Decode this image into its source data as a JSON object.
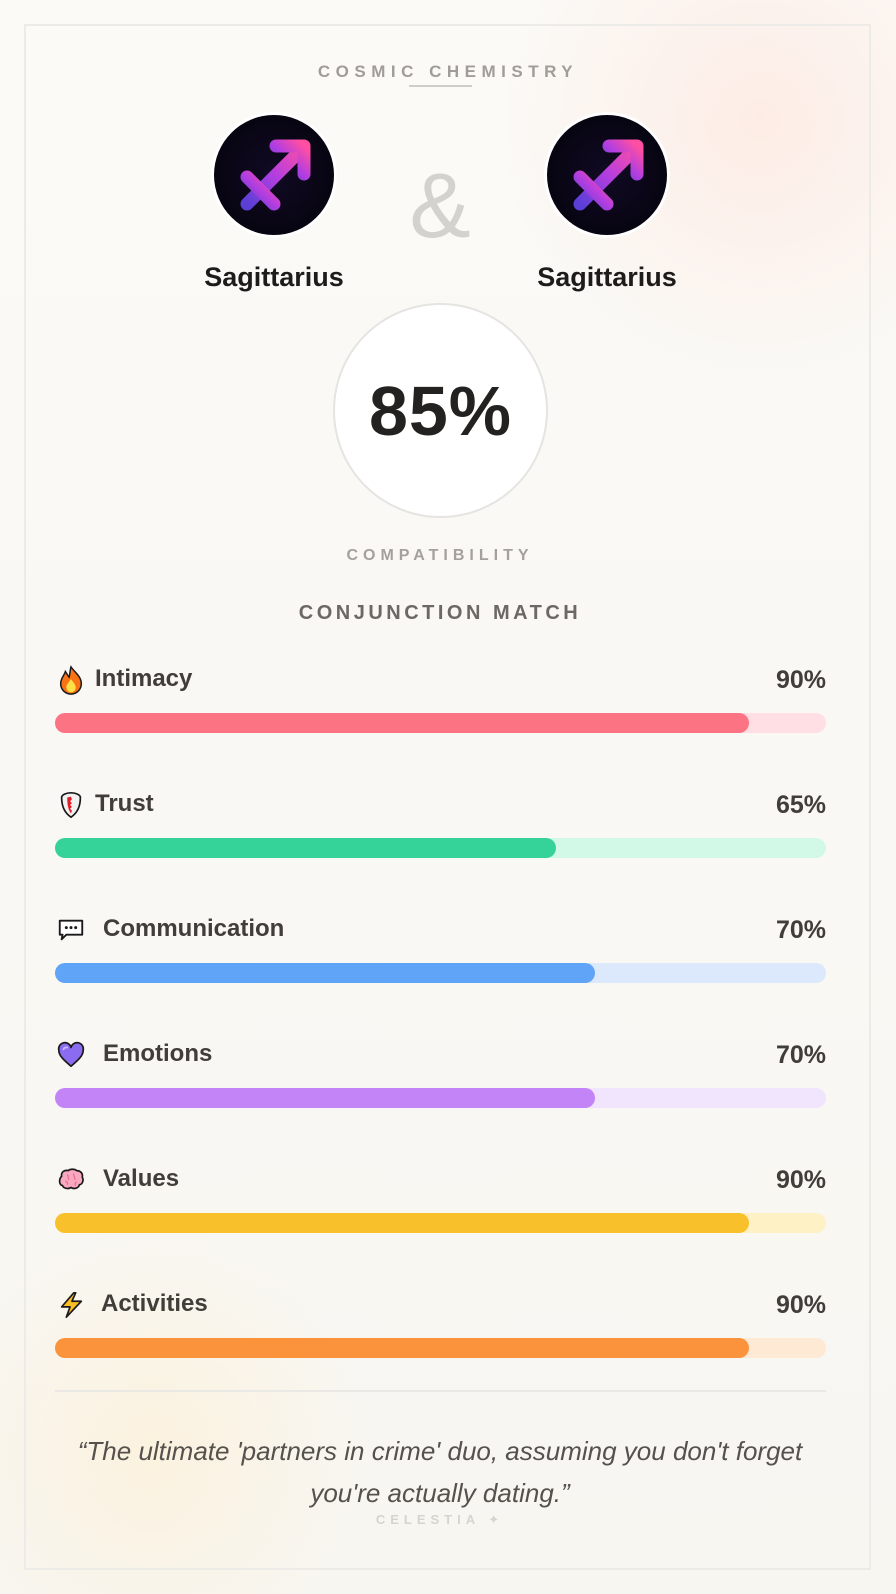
{
  "header": {
    "title": "COSMIC CHEMISTRY"
  },
  "pair": {
    "left": {
      "sign": "Sagittarius",
      "icon": "sagittarius-icon"
    },
    "right": {
      "sign": "Sagittarius",
      "icon": "sagittarius-icon"
    },
    "joiner": "&"
  },
  "score": {
    "value": "85%",
    "label": "COMPATIBILITY"
  },
  "section": {
    "title": "CONJUNCTION MATCH"
  },
  "metrics": [
    {
      "label": "Intimacy",
      "value": "90%",
      "percent": 90,
      "icon": "fire-icon",
      "color": "#fc7384",
      "track": "#ffdfe4"
    },
    {
      "label": "Trust",
      "value": "65%",
      "percent": 65,
      "icon": "shield-icon",
      "color": "#35d399",
      "track": "#d2f8e7"
    },
    {
      "label": "Communication",
      "value": "70%",
      "percent": 70,
      "icon": "speech-bubble-icon",
      "color": "#5fa4f6",
      "track": "#dce9fc"
    },
    {
      "label": "Emotions",
      "value": "70%",
      "percent": 70,
      "icon": "purple-heart-icon",
      "color": "#c284f7",
      "track": "#f1e4fd"
    },
    {
      "label": "Values",
      "value": "90%",
      "percent": 90,
      "icon": "brain-icon",
      "color": "#f8c02a",
      "track": "#fef1c6"
    },
    {
      "label": "Activities",
      "value": "90%",
      "percent": 90,
      "icon": "lightning-icon",
      "color": "#fb923c",
      "track": "#fee9d4"
    }
  ],
  "quote": "“The ultimate 'partners in crime' duo, assuming you don't forget you're actually dating.”",
  "brand": "CELESTIA ✦"
}
